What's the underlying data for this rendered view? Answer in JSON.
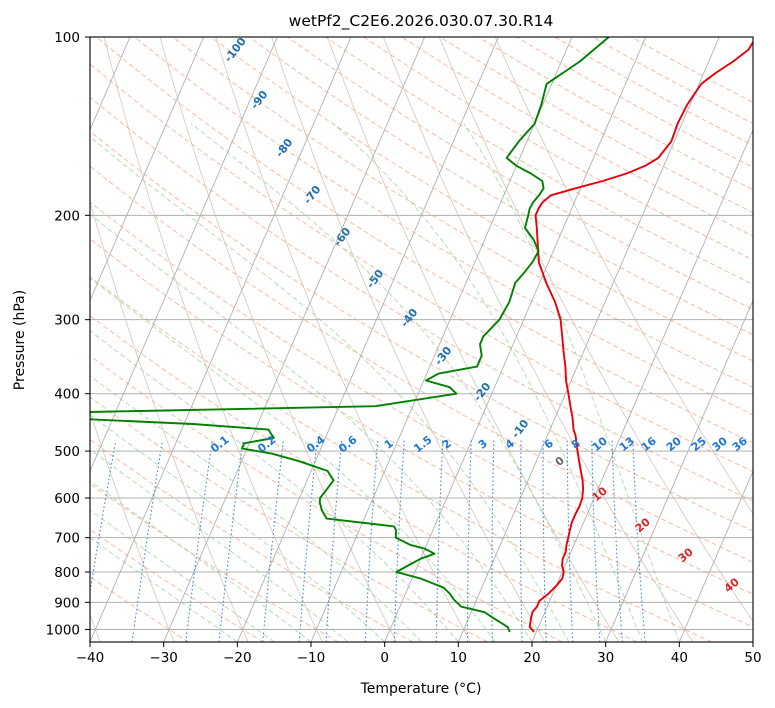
{
  "chart_data": {
    "type": "line",
    "title": "wetPf2_C2E6.2026.030.07.30.R14",
    "xlabel": "Temperature (°C)",
    "ylabel": "Pressure (hPa)",
    "xlim": [
      -40,
      50
    ],
    "ylim": [
      1050,
      100
    ],
    "y_scale": "log",
    "grid": true,
    "x_ticks": [
      "−40",
      "−30",
      "−20",
      "−10",
      "0",
      "10",
      "20",
      "30",
      "40",
      "50"
    ],
    "y_ticks": [
      "100",
      "200",
      "300",
      "400",
      "500",
      "600",
      "700",
      "800",
      "900",
      "1000"
    ],
    "colors": {
      "temperature": "#e8000b",
      "dewpoint": "#008000",
      "skew_isotherms": "#b0b0b0",
      "dry_adiabats": "#f4a582",
      "moist_adiabats": "#a6d8a6",
      "mixing_ratio": "#1f77d4",
      "sat_labels": "#1f6fb2",
      "theta_e_labels": "#d62728"
    },
    "series": [
      {
        "name": "temperature",
        "p": [
          1010,
          990,
          960,
          935,
          915,
          895,
          870,
          845,
          820,
          800,
          780,
          760,
          740,
          720,
          700,
          680,
          660,
          640,
          620,
          600,
          580,
          560,
          540,
          520,
          500,
          480,
          470,
          460,
          440,
          420,
          400,
          380,
          360,
          340,
          320,
          300,
          280,
          260,
          240,
          220,
          210,
          200,
          195,
          190,
          185,
          180,
          175,
          170,
          165,
          160,
          150,
          140,
          130,
          120,
          115,
          110,
          105,
          100
        ],
        "t": [
          19.7,
          18.8,
          18.5,
          18.3,
          18.6,
          18.6,
          19.4,
          20.0,
          20.4,
          20.2,
          19.6,
          19.3,
          19.3,
          19.0,
          18.8,
          18.6,
          18.4,
          18.4,
          18.5,
          18.4,
          18.0,
          17.4,
          16.6,
          15.8,
          15.0,
          14.2,
          13.8,
          13.2,
          12.4,
          11.4,
          10.4,
          9.3,
          8.4,
          7.3,
          6.2,
          5.0,
          3.2,
          0.9,
          -1.3,
          -2.8,
          -3.6,
          -4.5,
          -4.5,
          -4.3,
          -3.6,
          -0.6,
          2.6,
          5.4,
          7.5,
          8.8,
          9.6,
          9.4,
          9.6,
          10.3,
          11.6,
          13.3,
          14.7,
          15.0
        ]
      },
      {
        "name": "dewpoint",
        "p": [
          1010,
          990,
          960,
          935,
          915,
          890,
          870,
          850,
          820,
          800,
          780,
          760,
          745,
          730,
          720,
          700,
          680,
          670,
          650,
          630,
          610,
          600,
          580,
          560,
          540,
          520,
          505,
          495,
          485,
          475,
          470,
          460,
          450,
          440,
          430,
          420,
          400,
          390,
          380,
          370,
          360,
          345,
          330,
          320,
          300,
          280,
          260,
          250,
          240,
          230,
          220,
          210,
          200,
          195,
          190,
          185,
          180,
          175,
          170,
          165,
          160,
          150,
          140,
          130,
          120,
          110,
          100
        ],
        "t": [
          16.4,
          15.8,
          13.6,
          11.8,
          8.3,
          6.9,
          6.0,
          4.8,
          1.1,
          -2.5,
          -1.3,
          0.0,
          1.6,
          -0.1,
          -2.2,
          -4.6,
          -5.0,
          -5.5,
          -15.1,
          -16.2,
          -17.0,
          -17.2,
          -16.8,
          -16.4,
          -17.8,
          -22.2,
          -26.3,
          -30.7,
          -30.7,
          -27.0,
          -27.4,
          -28.2,
          -38.8,
          -56.4,
          -55.4,
          -15.1,
          -4.8,
          -6.1,
          -9.7,
          -8.4,
          -3.6,
          -3.6,
          -4.5,
          -4.5,
          -3.3,
          -3.0,
          -3.3,
          -2.7,
          -2.2,
          -2.0,
          -3.3,
          -5.2,
          -5.5,
          -5.7,
          -5.6,
          -5.2,
          -5.0,
          -5.6,
          -7.6,
          -10.0,
          -11.8,
          -11.1,
          -10.0,
          -10.2,
          -10.7,
          -7.5,
          -5.0
        ]
      }
    ],
    "saturation_temperature_labels": [
      "-100",
      "-90",
      "-80",
      "-70",
      "-60",
      "-50",
      "-40",
      "-30",
      "-20",
      "-10"
    ],
    "mixing_ratio_labels": [
      "0.1",
      "0.2",
      "0.4",
      "0.6",
      "1",
      "1.5",
      "2",
      "3",
      "4",
      "6",
      "8",
      "10",
      "13",
      "16",
      "20",
      "25",
      "30",
      "36"
    ],
    "theta_e_labels": [
      "0",
      "10",
      "20",
      "30",
      "40"
    ]
  }
}
